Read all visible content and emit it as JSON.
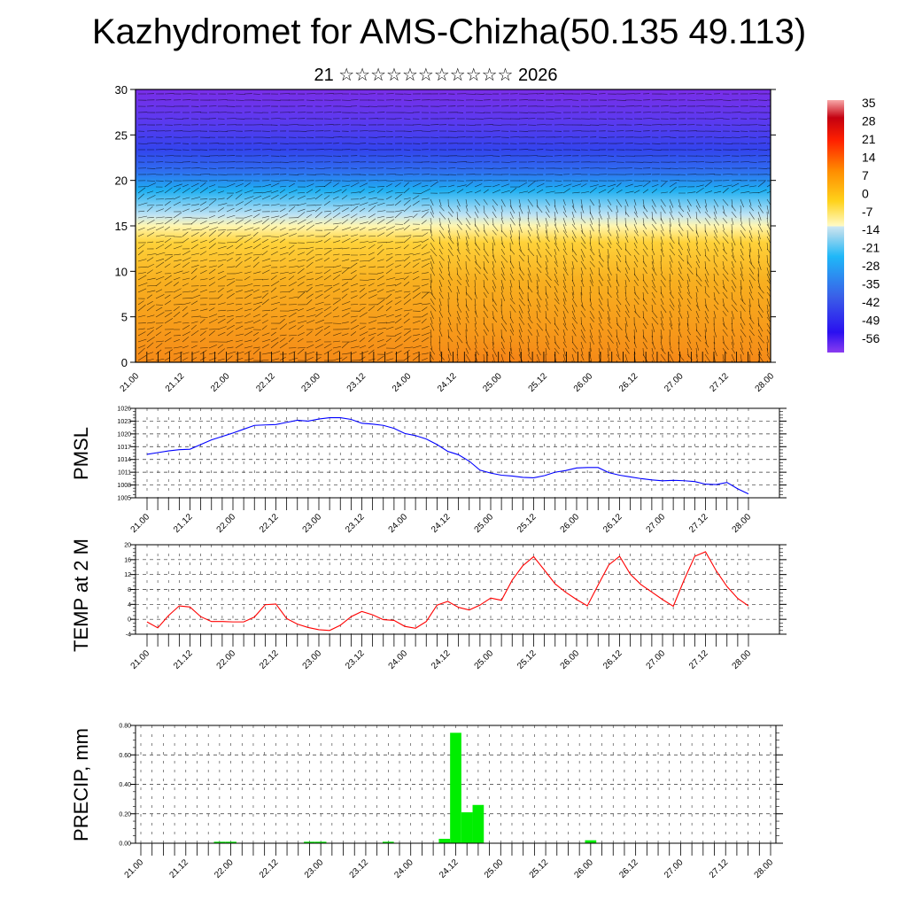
{
  "title": "Kazhydromet for AMS-Chizha(50.135 49.113)",
  "subtitle": "21 ☆☆☆☆☆☆☆☆☆☆☆ 2026",
  "colors": {
    "pmsl": "#0000ff",
    "temp": "#ff0000",
    "precip": "#00ee00"
  },
  "chart_data": [
    {
      "type": "heatmap",
      "title": "",
      "ylabel": "",
      "ylim": [
        0,
        30
      ],
      "yticks": [
        "0",
        "5",
        "10",
        "15",
        "20",
        "25",
        "30"
      ],
      "xticks": [
        "21.00",
        "21.12",
        "22.00",
        "22.12",
        "23.00",
        "23.12",
        "24.00",
        "24.12",
        "25.00",
        "25.12",
        "26.00",
        "26.12",
        "27.00",
        "27.12",
        "28.00"
      ],
      "colorbar": {
        "labels": [
          "35",
          "28",
          "21",
          "14",
          "7",
          "0",
          "-7",
          "-14",
          "-21",
          "-28",
          "-35",
          "-42",
          "-49",
          "-56"
        ],
        "range": [
          -60,
          38
        ]
      },
      "overlay": "wind vectors"
    },
    {
      "type": "line",
      "ylabel": "PMSL",
      "ylim": [
        1005,
        1026
      ],
      "yticks": [
        "1005",
        "1008",
        "1011",
        "1014",
        "1017",
        "1020",
        "1023",
        "1026"
      ],
      "xticks": [
        "21.00",
        "21.12",
        "22.00",
        "22.12",
        "23.00",
        "23.12",
        "24.00",
        "24.12",
        "25.00",
        "25.12",
        "26.00",
        "26.12",
        "27.00",
        "27.12",
        "28.00"
      ],
      "x_step_hours": 3,
      "values": [
        1015.2,
        1015.6,
        1016.0,
        1016.3,
        1016.4,
        1017.5,
        1018.6,
        1019.4,
        1020.2,
        1021.1,
        1022.0,
        1022.1,
        1022.2,
        1022.7,
        1023.2,
        1023.0,
        1023.5,
        1023.8,
        1023.8,
        1023.4,
        1022.5,
        1022.3,
        1022.0,
        1021.3,
        1020.1,
        1019.6,
        1018.8,
        1017.5,
        1015.9,
        1015.1,
        1013.6,
        1011.5,
        1010.8,
        1010.3,
        1010.1,
        1009.8,
        1009.7,
        1010.2,
        1011.0,
        1011.4,
        1012.0,
        1012.1,
        1012.1,
        1010.9,
        1010.3,
        1009.9,
        1009.5,
        1009.2,
        1009.0,
        1009.1,
        1009.0,
        1008.8,
        1008.2,
        1008.1,
        1008.6,
        1007.1,
        1005.9
      ]
    },
    {
      "type": "line",
      "ylabel": "TEMP at 2 M",
      "ylim": [
        -4,
        20
      ],
      "yticks": [
        "-4",
        "0",
        "4",
        "8",
        "12",
        "16",
        "20"
      ],
      "xticks": [
        "21.00",
        "21.12",
        "22.00",
        "22.12",
        "23.00",
        "23.12",
        "24.00",
        "24.12",
        "25.00",
        "25.12",
        "26.00",
        "26.12",
        "27.00",
        "27.12",
        "28.00"
      ],
      "x_step_hours": 3,
      "values": [
        -0.7,
        -2.3,
        1.0,
        3.6,
        3.3,
        0.7,
        -0.6,
        -0.6,
        -0.7,
        -0.7,
        0.6,
        3.9,
        4.1,
        0.2,
        -1.3,
        -2.2,
        -2.8,
        -3.0,
        -1.6,
        0.7,
        2.1,
        1.2,
        -0.1,
        -0.3,
        -1.9,
        -2.4,
        -0.6,
        3.8,
        4.8,
        3.2,
        2.5,
        3.8,
        5.7,
        5.1,
        10.5,
        14.4,
        16.8,
        13.2,
        9.5,
        7.2,
        5.3,
        3.6,
        9.2,
        14.6,
        16.9,
        12.1,
        9.3,
        7.3,
        5.3,
        3.5,
        10.5,
        16.9,
        18.1,
        13.0,
        8.8,
        5.6,
        3.6
      ]
    },
    {
      "type": "bar",
      "ylabel": "PRECIP, mm",
      "ylim": [
        0,
        0.8
      ],
      "yticks": [
        "0.00",
        "0.20",
        "0.40",
        "0.60",
        "0.80"
      ],
      "xticks": [
        "21.00",
        "21.12",
        "22.00",
        "22.12",
        "23.00",
        "23.12",
        "24.00",
        "24.12",
        "25.00",
        "25.12",
        "26.00",
        "26.12",
        "27.00",
        "27.12",
        "28.00"
      ],
      "x_step_hours": 3,
      "values": [
        0,
        0,
        0,
        0,
        0,
        0,
        0,
        0.01,
        0.01,
        0,
        0,
        0,
        0,
        0,
        0,
        0.01,
        0.01,
        0,
        0,
        0,
        0,
        0,
        0.01,
        0,
        0,
        0,
        0,
        0.03,
        0.75,
        0.21,
        0.26,
        0,
        0,
        0,
        0,
        0,
        0,
        0,
        0,
        0,
        0.02,
        0,
        0,
        0,
        0,
        0,
        0,
        0,
        0,
        0,
        0,
        0,
        0,
        0,
        0,
        0,
        0
      ]
    }
  ]
}
